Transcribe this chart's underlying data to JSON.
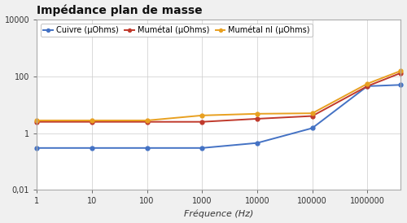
{
  "title": "Impédance plan de masse",
  "xlabel": "Fréquence (Hz)",
  "background_color": "#f0f0f0",
  "plot_bg_color": "#ffffff",
  "border_color": "#aaaaaa",
  "grid_color": "#cccccc",
  "series": [
    {
      "label": "Cuivre (µOhms)",
      "color": "#4472c4",
      "x": [
        1,
        10,
        100,
        1000,
        10000,
        100000,
        1000000,
        4000000
      ],
      "y": [
        0.3,
        0.3,
        0.3,
        0.3,
        0.45,
        1.5,
        45,
        50
      ]
    },
    {
      "label": "Mumétal (µOhms)",
      "color": "#c0392b",
      "x": [
        1,
        10,
        100,
        1000,
        10000,
        100000,
        1000000,
        4000000
      ],
      "y": [
        2.5,
        2.5,
        2.5,
        2.5,
        3.2,
        4.0,
        45,
        130
      ]
    },
    {
      "label": "Mumétal nl (µOhms)",
      "color": "#e8a020",
      "x": [
        1,
        10,
        100,
        1000,
        10000,
        100000,
        1000000,
        4000000
      ],
      "y": [
        2.8,
        2.8,
        2.8,
        4.2,
        4.8,
        5.0,
        55,
        155
      ]
    }
  ],
  "xlim": [
    1,
    4000000
  ],
  "ylim": [
    0.01,
    10000
  ],
  "x_ticks": [
    1,
    10,
    100,
    1000,
    10000,
    100000,
    1000000
  ],
  "x_tick_labels": [
    "1",
    "10",
    "100",
    "1000",
    "10000",
    "100000",
    "1000000"
  ],
  "y_ticks": [
    0.01,
    1,
    100,
    10000
  ],
  "y_tick_labels": [
    "0,01",
    "1",
    "100",
    "10000"
  ],
  "title_fontsize": 10,
  "label_fontsize": 8,
  "tick_fontsize": 7,
  "legend_fontsize": 7,
  "marker": "o",
  "markersize": 3.5,
  "linewidth": 1.4
}
